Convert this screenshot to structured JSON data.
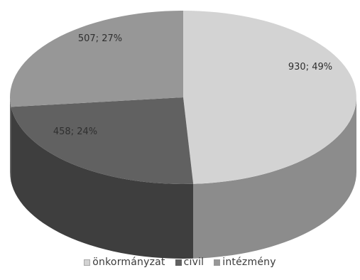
{
  "chart_data": {
    "type": "pie",
    "title": "",
    "labels": [
      "önkormányzat",
      "civil",
      "intézmény"
    ],
    "values": [
      930,
      458,
      507
    ],
    "percentages": [
      49,
      24,
      27
    ],
    "data_labels": [
      "930; 49%",
      "458; 24%",
      "507; 27%"
    ],
    "colors": [
      "#d3d3d3",
      "#616161",
      "#979797"
    ],
    "side_colors": [
      "#8c8c8c",
      "#3e3e3e",
      "#6a6a6a"
    ],
    "three_d": true,
    "legend_position": "bottom"
  }
}
